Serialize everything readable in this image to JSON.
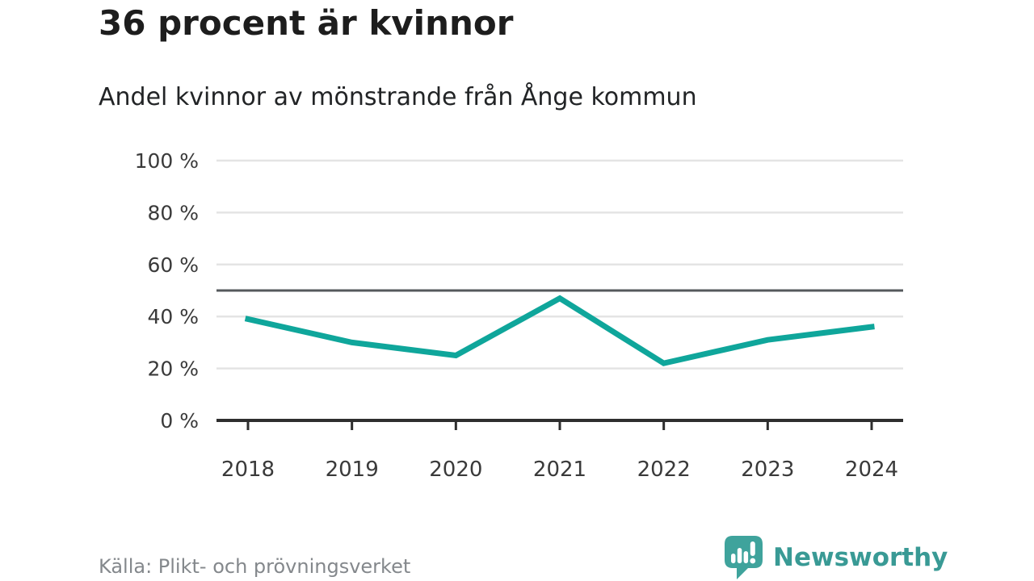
{
  "header": {
    "title": "36 procent är kvinnor",
    "subtitle": "Andel kvinnor av mönstrande från Ånge kommun"
  },
  "footer": {
    "source": "Källa: Plikt- och prövningsverket",
    "brand": "Newsworthy"
  },
  "colors": {
    "line": "#0fa69b",
    "reference_line": "#55595c",
    "grid": "#e4e4e4",
    "axis": "#2e2e2e",
    "tick_label": "#3a3a3a",
    "title": "#1d1d1d",
    "source_text": "#84888c",
    "brand": "#399a95",
    "logo_bubble": "#3fa39c"
  },
  "chart_data": {
    "type": "line",
    "title": "36 procent är kvinnor",
    "subtitle": "Andel kvinnor av mönstrande från Ånge kommun",
    "x": [
      "2018",
      "2019",
      "2020",
      "2021",
      "2022",
      "2023",
      "2024"
    ],
    "series": [
      {
        "name": "Andel kvinnor av mönstrande",
        "color": "#0fa69b",
        "values": [
          39,
          30,
          25,
          47,
          22,
          31,
          36
        ]
      }
    ],
    "xlabel": "",
    "ylabel": "",
    "ylim": [
      0,
      100
    ],
    "yticks": [
      0,
      20,
      40,
      60,
      80,
      100
    ],
    "ytick_suffix": " %",
    "reference_line": {
      "value": 50
    },
    "grid": true,
    "legend": false,
    "source": "Källa: Plikt- och prövningsverket"
  }
}
